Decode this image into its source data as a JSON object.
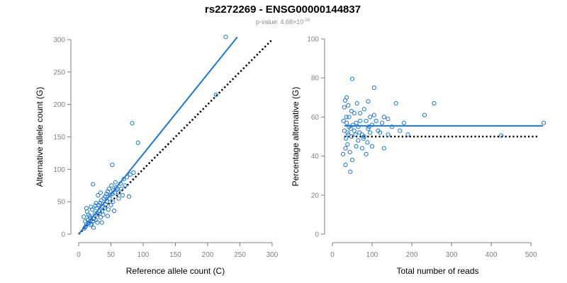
{
  "title": "rs2272269 - ENSG00000144837",
  "subtitle_prefix": "p-value: 4.68×10",
  "subtitle_exponent": "-28",
  "colors": {
    "point": "#1f77d4",
    "fit": "#1f77d4",
    "reference": "#000000",
    "axis": "#7f7f7f"
  },
  "chart_data": [
    {
      "type": "scatter",
      "xlabel": "Reference allele count (C)",
      "ylabel": "Alternative allele count (G)",
      "xlim": [
        0,
        300
      ],
      "ylim": [
        0,
        300
      ],
      "xticks": [
        0,
        50,
        100,
        150,
        200,
        250,
        300
      ],
      "yticks": [
        0,
        50,
        100,
        150,
        200,
        250,
        300
      ],
      "reference_line": {
        "style": "dotted",
        "from": [
          0,
          0
        ],
        "to": [
          300,
          300
        ]
      },
      "fit_line": {
        "style": "solid",
        "from": [
          0,
          0
        ],
        "to": [
          246,
          304
        ]
      },
      "points": [
        [
          228,
          304
        ],
        [
          213,
          215
        ],
        [
          83,
          171
        ],
        [
          92,
          141
        ],
        [
          52,
          107
        ],
        [
          10,
          20
        ],
        [
          12,
          15
        ],
        [
          8,
          27
        ],
        [
          14,
          22
        ],
        [
          16,
          18
        ],
        [
          11,
          12
        ],
        [
          18,
          25
        ],
        [
          20,
          16
        ],
        [
          15,
          30
        ],
        [
          22,
          20
        ],
        [
          9,
          9
        ],
        [
          13,
          35
        ],
        [
          17,
          28
        ],
        [
          24,
          24
        ],
        [
          19,
          14
        ],
        [
          25,
          32
        ],
        [
          27,
          22
        ],
        [
          21,
          38
        ],
        [
          23,
          10
        ],
        [
          26,
          44
        ],
        [
          28,
          40
        ],
        [
          30,
          30
        ],
        [
          29,
          18
        ],
        [
          32,
          36
        ],
        [
          34,
          26
        ],
        [
          31,
          45
        ],
        [
          33,
          48
        ],
        [
          36,
          35
        ],
        [
          38,
          30
        ],
        [
          35,
          52
        ],
        [
          37,
          42
        ],
        [
          40,
          40
        ],
        [
          42,
          46
        ],
        [
          39,
          55
        ],
        [
          41,
          58
        ],
        [
          44,
          50
        ],
        [
          46,
          38
        ],
        [
          43,
          62
        ],
        [
          45,
          66
        ],
        [
          48,
          55
        ],
        [
          50,
          45
        ],
        [
          47,
          70
        ],
        [
          49,
          60
        ],
        [
          52,
          62
        ],
        [
          54,
          68
        ],
        [
          51,
          75
        ],
        [
          53,
          50
        ],
        [
          56,
          64
        ],
        [
          58,
          72
        ],
        [
          55,
          36
        ],
        [
          57,
          80
        ],
        [
          60,
          70
        ],
        [
          62,
          64
        ],
        [
          65,
          78
        ],
        [
          68,
          60
        ],
        [
          70,
          85
        ],
        [
          72,
          75
        ],
        [
          75,
          88
        ],
        [
          78,
          58
        ],
        [
          80,
          92
        ],
        [
          85,
          95
        ],
        [
          22,
          77
        ],
        [
          30,
          60
        ],
        [
          34,
          64
        ],
        [
          27,
          48
        ],
        [
          19,
          42
        ],
        [
          45,
          28
        ],
        [
          12,
          40
        ],
        [
          36,
          18
        ],
        [
          62,
          55
        ],
        [
          66,
          70
        ]
      ]
    },
    {
      "type": "scatter",
      "xlabel": "Total number of reads",
      "ylabel": "Percentage alternative (G)",
      "xlim": [
        0,
        530
      ],
      "ylim": [
        0,
        100
      ],
      "xticks": [
        0,
        100,
        200,
        300,
        400,
        500
      ],
      "yticks": [
        0,
        20,
        40,
        60,
        80,
        100
      ],
      "reference_line": {
        "style": "dotted",
        "from": [
          30,
          50
        ],
        "to": [
          520,
          50
        ]
      },
      "fit_line": {
        "style": "solid",
        "from": [
          30,
          55.5
        ],
        "to": [
          530,
          55.5
        ]
      },
      "points": [
        [
          532,
          57
        ],
        [
          425,
          50.5
        ],
        [
          256,
          67
        ],
        [
          232,
          61
        ],
        [
          105,
          75
        ],
        [
          50,
          79.5
        ],
        [
          45,
          32
        ],
        [
          33,
          35.5
        ],
        [
          27,
          41
        ],
        [
          36,
          70
        ],
        [
          32,
          68.5
        ],
        [
          40,
          66
        ],
        [
          30,
          65
        ],
        [
          28,
          58
        ],
        [
          35,
          60
        ],
        [
          42,
          55
        ],
        [
          38,
          52
        ],
        [
          48,
          50
        ],
        [
          55,
          53
        ],
        [
          60,
          57
        ],
        [
          65,
          48
        ],
        [
          70,
          62
        ],
        [
          75,
          51
        ],
        [
          80,
          64
        ],
        [
          85,
          58
        ],
        [
          90,
          54
        ],
        [
          95,
          60
        ],
        [
          100,
          56
        ],
        [
          110,
          58
        ],
        [
          120,
          52
        ],
        [
          130,
          60
        ],
        [
          140,
          51
        ],
        [
          150,
          55
        ],
        [
          160,
          67
        ],
        [
          170,
          53
        ],
        [
          180,
          57
        ],
        [
          190,
          51
        ],
        [
          130,
          44
        ],
        [
          140,
          59
        ],
        [
          85,
          41
        ],
        [
          90,
          68
        ],
        [
          75,
          44
        ],
        [
          60,
          45
        ],
        [
          50,
          38
        ],
        [
          44,
          42
        ],
        [
          38,
          46
        ],
        [
          34,
          49
        ],
        [
          30,
          53
        ],
        [
          55,
          62
        ],
        [
          65,
          55
        ],
        [
          70,
          58
        ],
        [
          80,
          50
        ],
        [
          95,
          52
        ],
        [
          105,
          61
        ],
        [
          115,
          53
        ],
        [
          125,
          57
        ],
        [
          100,
          45
        ],
        [
          62,
          67
        ],
        [
          48,
          63
        ],
        [
          42,
          60
        ],
        [
          36,
          57
        ],
        [
          52,
          56
        ],
        [
          58,
          51
        ],
        [
          78,
          49
        ],
        [
          88,
          47
        ],
        [
          92,
          55
        ],
        [
          68,
          52
        ],
        [
          46,
          54
        ],
        [
          40,
          51
        ],
        [
          33,
          44
        ]
      ]
    }
  ]
}
